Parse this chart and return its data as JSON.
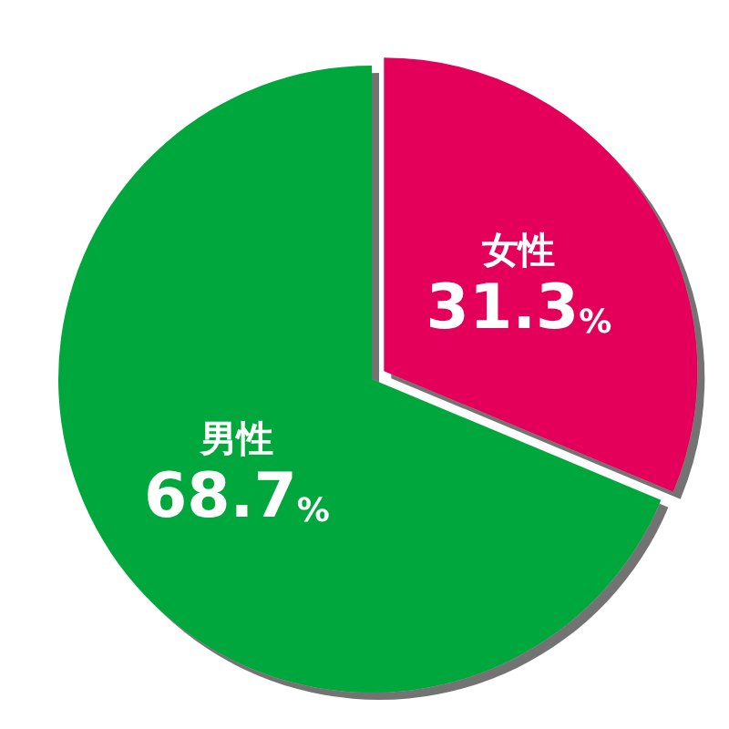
{
  "chart_data": {
    "type": "pie",
    "categories": [
      "女性",
      "男性"
    ],
    "values": [
      31.3,
      68.7
    ],
    "colors": [
      "#e4005a",
      "#00a73c"
    ],
    "value_labels": [
      "31.3%",
      "68.7%"
    ],
    "legend": false
  }
}
